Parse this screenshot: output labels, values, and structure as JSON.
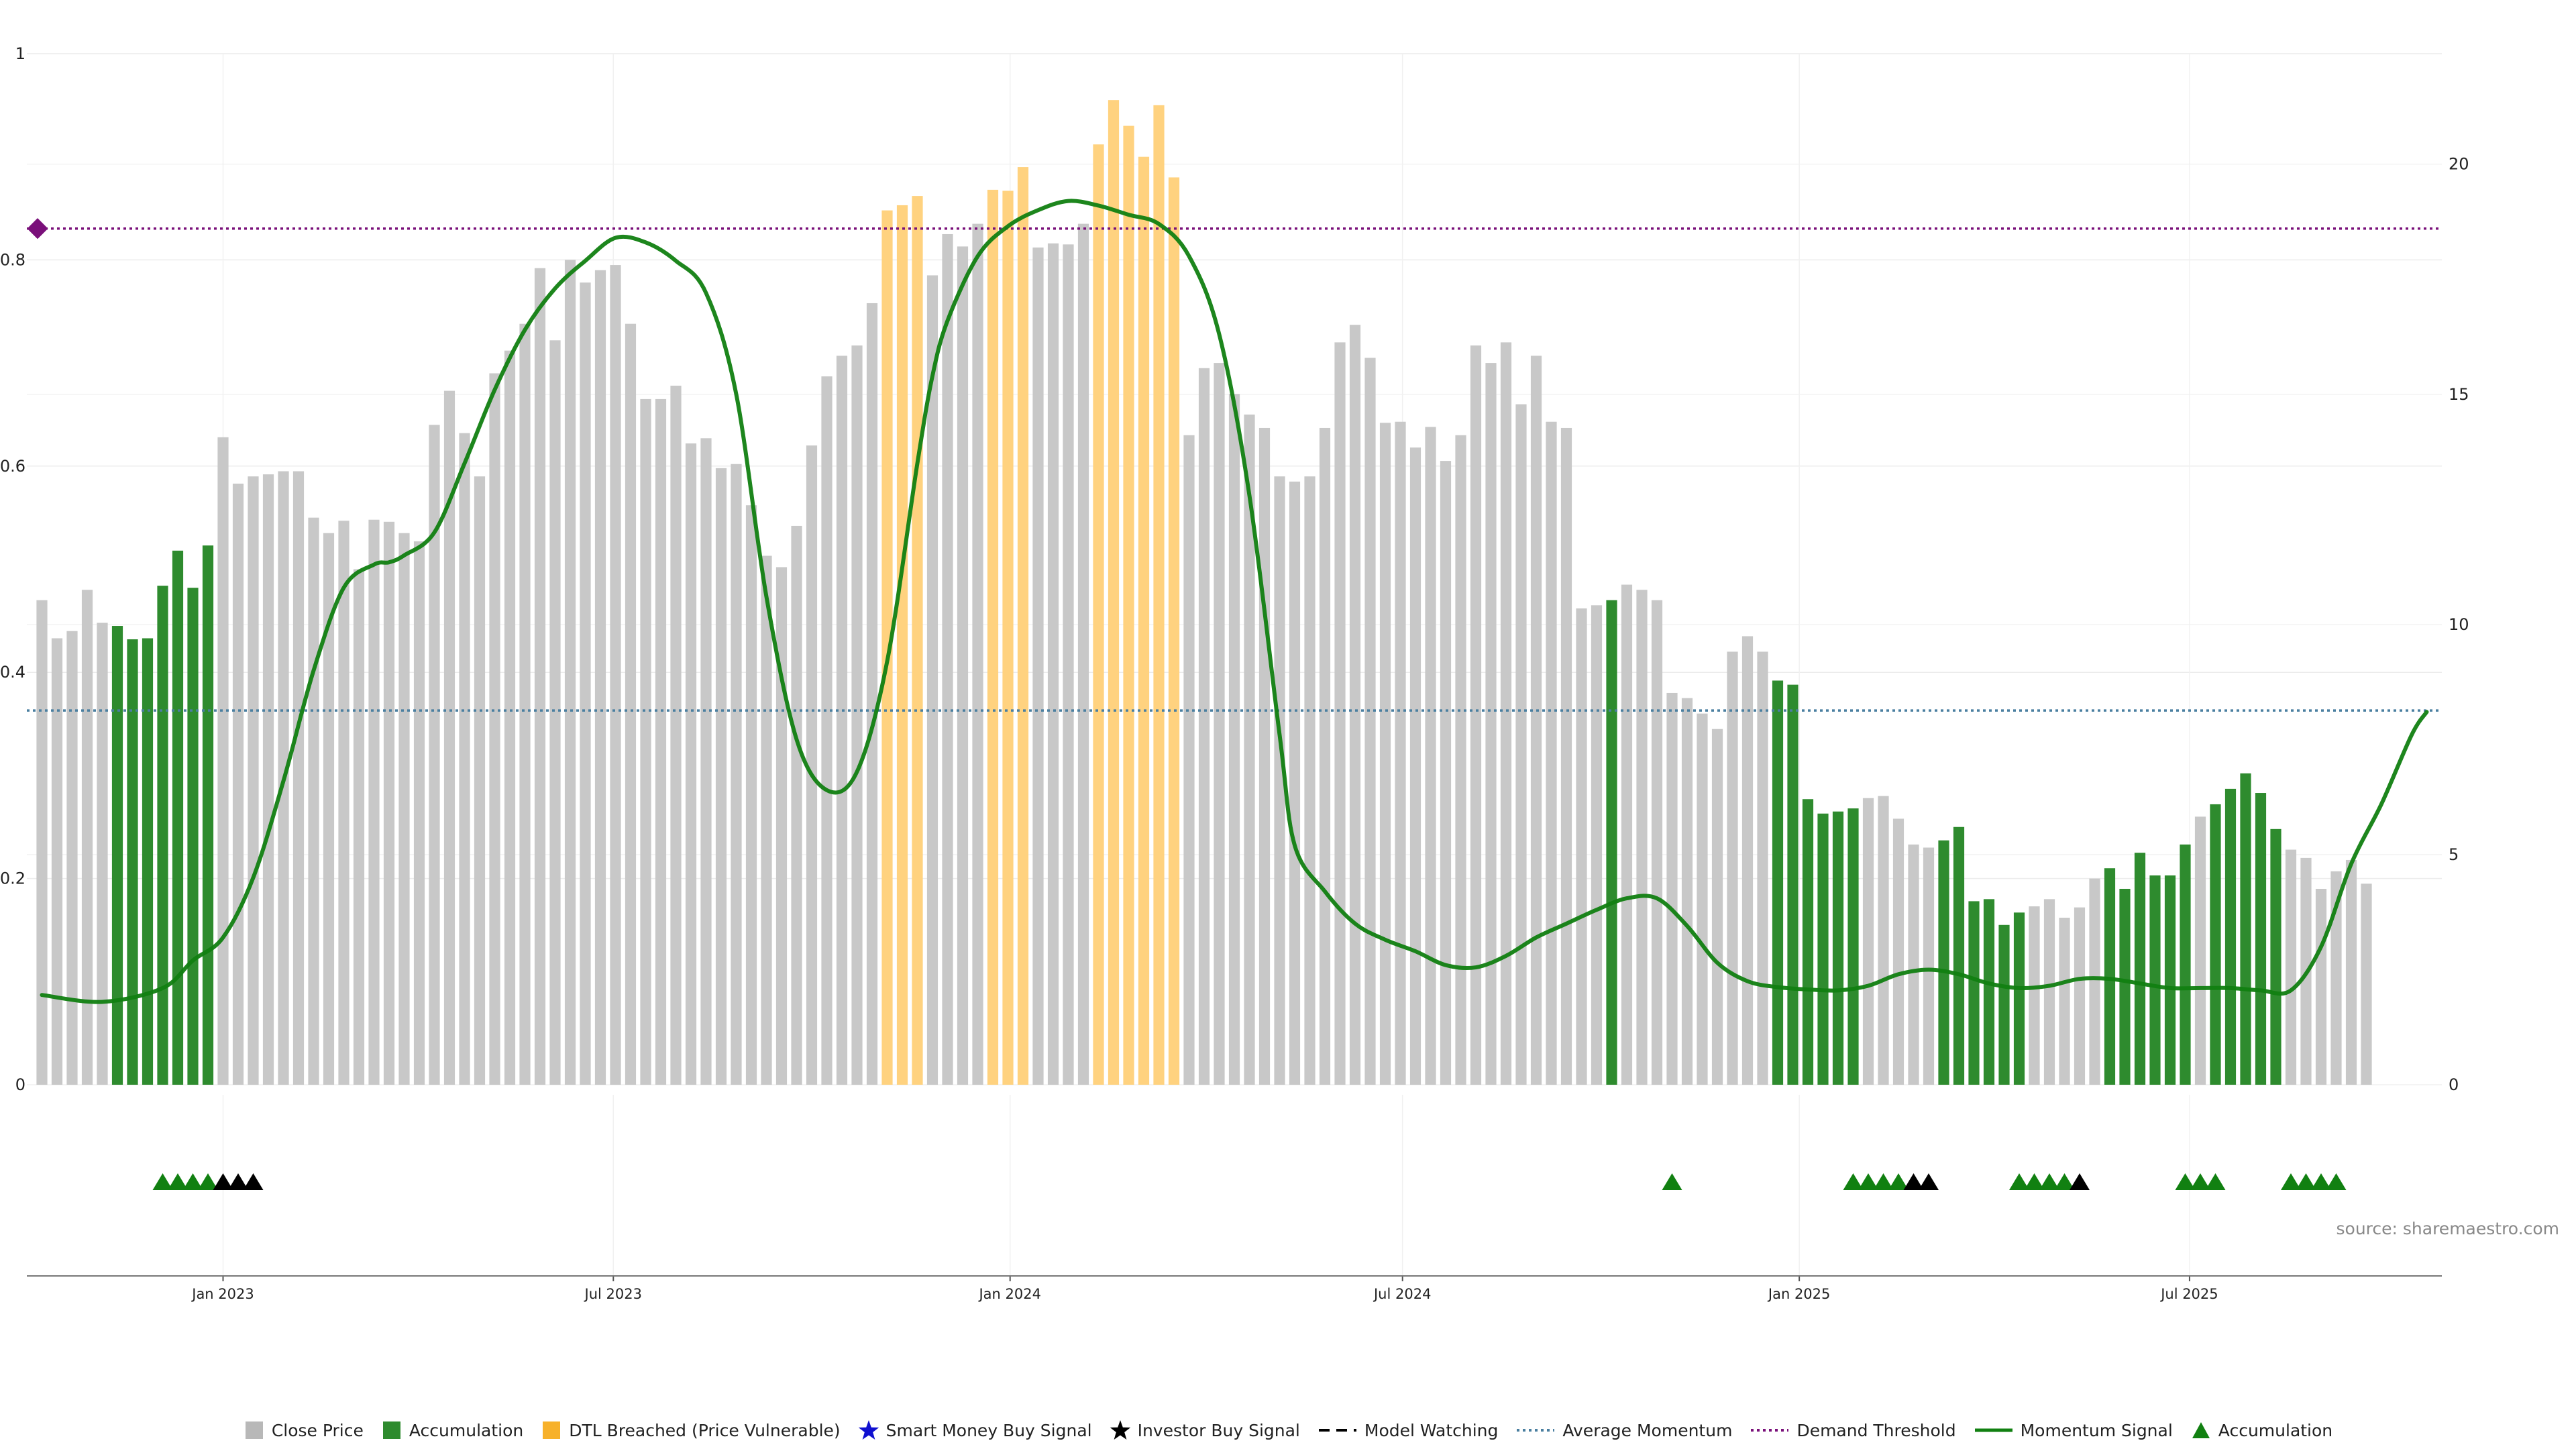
{
  "colors": {
    "close": "#c8c8c8",
    "accumulation": "#2e8b2e",
    "dtl": "#ffd27f",
    "momentum": "#118011",
    "average": "#4a7fa0",
    "threshold": "#7a107a",
    "investor": "#000000",
    "smart_money": "#1010d0"
  },
  "source": "source: sharemaestro.com",
  "legend": [
    {
      "label": "Close Price",
      "kind": "square",
      "color": "#b8b8b8"
    },
    {
      "label": "Accumulation",
      "kind": "square",
      "color": "#2e8b2e"
    },
    {
      "label": "DTL Breached (Price Vulnerable)",
      "kind": "square",
      "color": "#f7b12a"
    },
    {
      "label": "Smart Money Buy Signal",
      "kind": "star",
      "color": "#1010d0"
    },
    {
      "label": "Investor Buy Signal",
      "kind": "star",
      "color": "#000000"
    },
    {
      "label": "Model Watching",
      "kind": "dash",
      "color": "#000000"
    },
    {
      "label": "Average Momentum",
      "kind": "dotted",
      "color": "#4a7fa0"
    },
    {
      "label": "Demand Threshold",
      "kind": "dotted",
      "color": "#7a107a"
    },
    {
      "label": "Momentum Signal",
      "kind": "line",
      "color": "#118011"
    },
    {
      "label": "Accumulation",
      "kind": "triangle",
      "color": "#118011"
    }
  ],
  "chart_data": {
    "type": "bar",
    "x_axis": {
      "type": "date",
      "range": [
        "2022-10-02",
        "2025-10-26"
      ],
      "ticks": [
        {
          "date": "2023-01-01",
          "label": "Jan 2023"
        },
        {
          "date": "2023-07-01",
          "label": "Jul 2023"
        },
        {
          "date": "2024-01-01",
          "label": "Jan 2024"
        },
        {
          "date": "2024-07-01",
          "label": "Jul 2024"
        },
        {
          "date": "2025-01-01",
          "label": "Jan 2025"
        },
        {
          "date": "2025-07-01",
          "label": "Jul 2025"
        }
      ]
    },
    "y_left": {
      "range": [
        0,
        1
      ],
      "ticks": [
        0,
        0.2,
        0.4,
        0.6,
        0.8,
        1
      ]
    },
    "y_right": {
      "range": [
        0,
        22.4
      ],
      "ticks": [
        0,
        5,
        10,
        15,
        20
      ]
    },
    "grid": true,
    "legend_position": "bottom",
    "bars": {
      "start_date": "2022-10-09",
      "week_step_days": 7,
      "values": [
        0.47,
        0.433,
        0.44,
        0.48,
        0.448,
        0.445,
        0.432,
        0.433,
        0.484,
        0.518,
        0.482,
        0.523,
        0.628,
        0.583,
        0.59,
        0.592,
        0.595,
        0.595,
        0.55,
        0.535,
        0.547,
        0.5,
        0.548,
        0.546,
        0.535,
        0.527,
        0.64,
        0.673,
        0.632,
        0.59,
        0.69,
        0.712,
        0.738,
        0.792,
        0.722,
        0.8,
        0.778,
        0.79,
        0.795,
        0.738,
        0.665,
        0.665,
        0.678,
        0.622,
        0.627,
        0.598,
        0.602,
        0.562,
        0.513,
        0.502,
        0.542,
        0.62,
        0.687,
        0.707,
        0.717,
        0.758,
        0.848,
        0.853,
        0.862,
        0.785,
        0.825,
        0.813,
        0.835,
        0.868,
        0.867,
        0.89,
        0.812,
        0.816,
        0.815,
        0.835,
        0.912,
        0.955,
        0.93,
        0.9,
        0.95,
        0.88,
        0.63,
        0.695,
        0.7,
        0.67,
        0.65,
        0.637,
        0.59,
        0.585,
        0.59,
        0.637,
        0.72,
        0.737,
        0.705,
        0.642,
        0.643,
        0.618,
        0.638,
        0.605,
        0.63,
        0.717,
        0.7,
        0.72,
        0.66,
        0.707,
        0.643,
        0.637,
        0.462,
        0.465,
        0.47,
        0.485,
        0.48,
        0.47,
        0.38,
        0.375,
        0.36,
        0.345,
        0.42,
        0.435,
        0.42,
        0.392,
        0.388,
        0.277,
        0.263,
        0.265,
        0.268,
        0.278,
        0.28,
        0.258,
        0.233,
        0.23,
        0.237,
        0.25,
        0.178,
        0.18,
        0.155,
        0.167,
        0.173,
        0.18,
        0.162,
        0.172,
        0.2,
        0.21,
        0.19,
        0.225,
        0.203,
        0.203,
        0.233,
        0.26,
        0.272,
        0.287,
        0.302,
        0.283,
        0.248,
        0.228,
        0.22,
        0.19,
        0.207,
        0.218,
        0.195
      ],
      "accumulation_index_ranges": [
        [
          5,
          11
        ],
        [
          104,
          104
        ],
        [
          115,
          120
        ],
        [
          126,
          131
        ],
        [
          137,
          142
        ],
        [
          144,
          148
        ]
      ],
      "dtl_index_ranges": [
        [
          56,
          58
        ],
        [
          63,
          65
        ],
        [
          70,
          75
        ]
      ]
    },
    "series": [
      {
        "name": "Momentum Signal",
        "axis": "right",
        "x": [
          "2022-10-09",
          "2022-11-06",
          "2022-12-04",
          "2022-12-18",
          "2023-01-01",
          "2023-01-15",
          "2023-01-29",
          "2023-02-12",
          "2023-02-26",
          "2023-03-12",
          "2023-03-19",
          "2023-03-26",
          "2023-04-09",
          "2023-04-23",
          "2023-05-07",
          "2023-05-21",
          "2023-06-04",
          "2023-06-18",
          "2023-07-02",
          "2023-07-16",
          "2023-07-30",
          "2023-08-13",
          "2023-08-27",
          "2023-09-10",
          "2023-09-24",
          "2023-10-08",
          "2023-10-22",
          "2023-11-05",
          "2023-11-19",
          "2023-11-26",
          "2023-12-03",
          "2023-12-17",
          "2023-12-31",
          "2024-01-14",
          "2024-01-28",
          "2024-02-11",
          "2024-02-25",
          "2024-03-10",
          "2024-03-24",
          "2024-04-07",
          "2024-04-21",
          "2024-05-05",
          "2024-05-12",
          "2024-05-26",
          "2024-06-09",
          "2024-06-23",
          "2024-07-07",
          "2024-07-21",
          "2024-08-04",
          "2024-08-18",
          "2024-09-01",
          "2024-09-15",
          "2024-09-29",
          "2024-10-13",
          "2024-10-27",
          "2024-11-10",
          "2024-11-24",
          "2024-12-08",
          "2024-12-22",
          "2025-01-05",
          "2025-01-19",
          "2025-02-02",
          "2025-02-16",
          "2025-03-02",
          "2025-03-16",
          "2025-03-30",
          "2025-04-13",
          "2025-04-27",
          "2025-05-11",
          "2025-05-25",
          "2025-06-08",
          "2025-06-22",
          "2025-07-06",
          "2025-07-20",
          "2025-08-03",
          "2025-08-17",
          "2025-08-31",
          "2025-09-14",
          "2025-09-28",
          "2025-10-12",
          "2025-10-19"
        ],
        "y": [
          1.95,
          1.8,
          2.1,
          2.7,
          3.2,
          4.5,
          6.6,
          9.0,
          10.8,
          11.3,
          11.35,
          11.5,
          12.0,
          13.5,
          15.1,
          16.4,
          17.3,
          17.9,
          18.4,
          18.3,
          17.9,
          17.2,
          15.0,
          10.6,
          7.5,
          6.4,
          6.8,
          9.2,
          13.5,
          15.4,
          16.6,
          18.0,
          18.65,
          19.0,
          19.2,
          19.1,
          18.9,
          18.7,
          18.0,
          16.3,
          12.8,
          7.6,
          5.2,
          4.2,
          3.5,
          3.15,
          2.9,
          2.6,
          2.55,
          2.8,
          3.2,
          3.5,
          3.8,
          4.05,
          4.05,
          3.45,
          2.65,
          2.25,
          2.12,
          2.07,
          2.05,
          2.15,
          2.4,
          2.5,
          2.4,
          2.2,
          2.1,
          2.15,
          2.3,
          2.3,
          2.2,
          2.1,
          2.1,
          2.1,
          2.05,
          2.05,
          3.0,
          4.8,
          6.1,
          7.6,
          8.1
        ]
      }
    ],
    "reference_lines": [
      {
        "name": "Demand Threshold",
        "axis": "right",
        "value": 18.6
      },
      {
        "name": "Average Momentum",
        "axis": "right",
        "value": 8.13
      }
    ],
    "signals": {
      "accumulation_dates": [
        "2022-12-04",
        "2022-12-11",
        "2022-12-18",
        "2022-12-25",
        "2024-11-03",
        "2025-01-26",
        "2025-02-02",
        "2025-02-09",
        "2025-02-16",
        "2025-04-13",
        "2025-04-20",
        "2025-04-27",
        "2025-05-04",
        "2025-06-29",
        "2025-07-06",
        "2025-07-13",
        "2025-08-17",
        "2025-08-24",
        "2025-08-31",
        "2025-09-07"
      ],
      "investor_buy_dates": [
        "2023-01-01",
        "2023-01-08",
        "2023-01-15",
        "2025-02-23",
        "2025-03-02",
        "2025-05-11"
      ]
    }
  }
}
